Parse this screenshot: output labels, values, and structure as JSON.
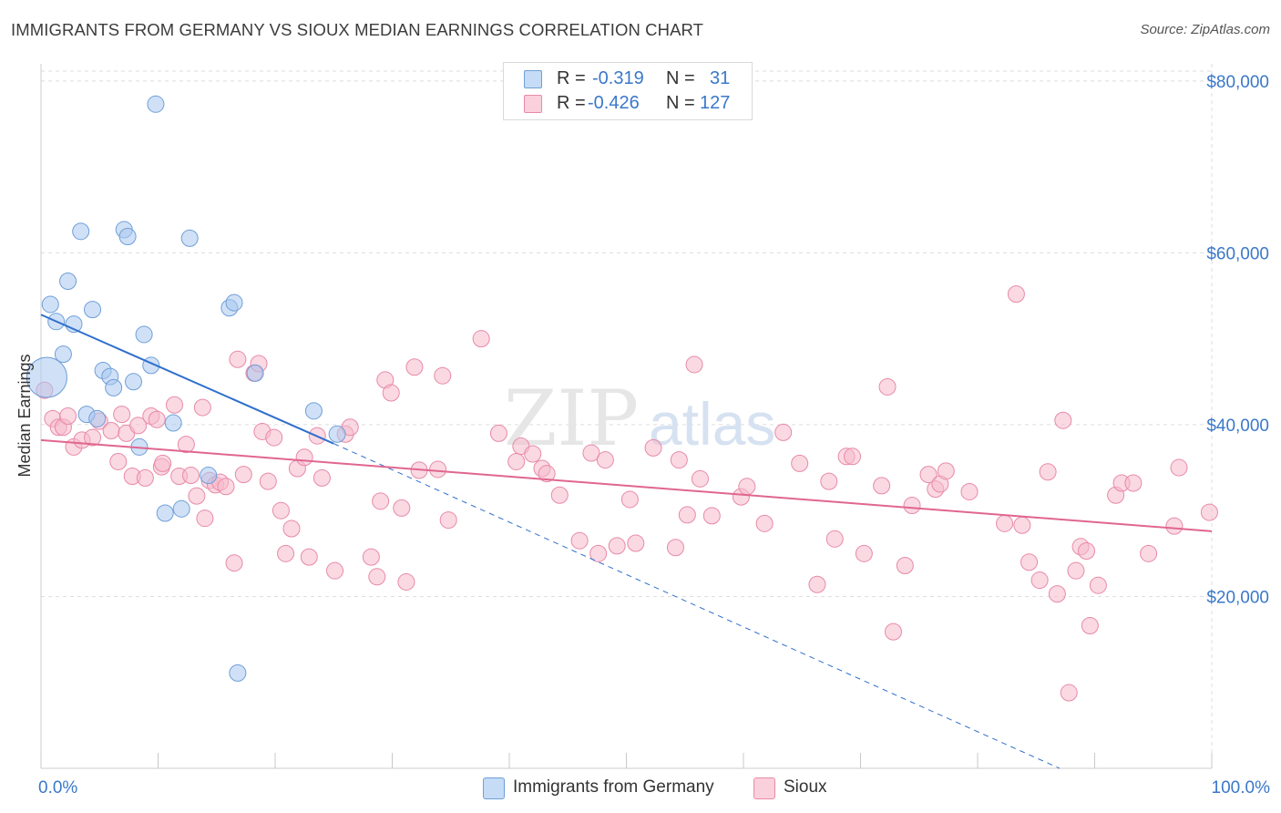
{
  "title": "IMMIGRANTS FROM GERMANY VS SIOUX MEDIAN EARNINGS CORRELATION CHART",
  "source": "Source: ZipAtlas.com",
  "watermark": {
    "zip": "ZIP",
    "atlas": "atlas"
  },
  "colors": {
    "blue_fill": "#a9c8f0",
    "blue_stroke": "#6f9fd8",
    "blue_line": "#2f6fcc",
    "pink_fill": "#f5b9cc",
    "pink_stroke": "#e88aa8",
    "pink_line": "#e06690",
    "axis_label": "#3a78c9",
    "grid": "#dedede"
  },
  "legend": {
    "r_label": "R =",
    "n_label": "N =",
    "rows": [
      {
        "series": "blue",
        "r": "-0.319",
        "n": "31"
      },
      {
        "series": "pink",
        "r": "-0.426",
        "n": "127"
      }
    ]
  },
  "bottom_legend": [
    {
      "series": "blue",
      "label": "Immigrants from Germany"
    },
    {
      "series": "pink",
      "label": "Sioux"
    }
  ],
  "chart_data": {
    "type": "scatter",
    "title": "IMMIGRANTS FROM GERMANY VS SIOUX MEDIAN EARNINGS CORRELATION CHART",
    "xlabel": "",
    "ylabel": "Median Earnings",
    "xlim": [
      0,
      100
    ],
    "ylim": [
      0,
      82000
    ],
    "x_tick_labels": [
      "0.0%",
      "100.0%"
    ],
    "y_ticks": [
      20000,
      40000,
      60000,
      80000
    ],
    "y_tick_labels": [
      "$20,000",
      "$40,000",
      "$60,000",
      "$80,000"
    ],
    "grid": true,
    "legend_position": "top-center",
    "series": [
      {
        "name": "Immigrants from Germany",
        "color": "#a9c8f0",
        "trend": {
          "x": [
            0,
            25
          ],
          "y": [
            52800,
            37800
          ],
          "dashed_extension_to": [
            87,
            0
          ]
        },
        "points": [
          [
            0.5,
            45500
          ],
          [
            0.8,
            54000
          ],
          [
            1.3,
            52000
          ],
          [
            1.9,
            48200
          ],
          [
            2.3,
            56700
          ],
          [
            2.8,
            51700
          ],
          [
            3.4,
            62500
          ],
          [
            3.9,
            41200
          ],
          [
            4.4,
            53400
          ],
          [
            4.8,
            40700
          ],
          [
            5.3,
            46300
          ],
          [
            5.9,
            45600
          ],
          [
            6.2,
            44300
          ],
          [
            7.1,
            62700
          ],
          [
            7.4,
            61900
          ],
          [
            7.9,
            45000
          ],
          [
            8.4,
            37400
          ],
          [
            8.8,
            50500
          ],
          [
            9.4,
            46900
          ],
          [
            9.8,
            77300
          ],
          [
            10.6,
            29700
          ],
          [
            11.3,
            40200
          ],
          [
            12.0,
            30200
          ],
          [
            12.7,
            61700
          ],
          [
            14.3,
            34100
          ],
          [
            16.1,
            53600
          ],
          [
            16.5,
            54200
          ],
          [
            16.8,
            11100
          ],
          [
            18.3,
            46000
          ],
          [
            23.3,
            41600
          ],
          [
            25.3,
            38900
          ]
        ]
      },
      {
        "name": "Sioux",
        "color": "#f5b9cc",
        "trend": {
          "x": [
            0,
            100
          ],
          "y": [
            38200,
            27600
          ]
        },
        "points": [
          [
            0.3,
            44000
          ],
          [
            1.0,
            40700
          ],
          [
            1.5,
            39700
          ],
          [
            1.9,
            39700
          ],
          [
            2.3,
            41000
          ],
          [
            2.8,
            37400
          ],
          [
            3.5,
            38200
          ],
          [
            4.4,
            38500
          ],
          [
            5.0,
            40400
          ],
          [
            6.0,
            39300
          ],
          [
            6.6,
            35700
          ],
          [
            6.9,
            41200
          ],
          [
            7.3,
            39000
          ],
          [
            7.8,
            34000
          ],
          [
            8.3,
            39900
          ],
          [
            8.9,
            33800
          ],
          [
            9.4,
            41000
          ],
          [
            9.9,
            40600
          ],
          [
            10.3,
            35100
          ],
          [
            10.4,
            35500
          ],
          [
            11.4,
            42300
          ],
          [
            11.8,
            34000
          ],
          [
            12.4,
            37700
          ],
          [
            12.8,
            34100
          ],
          [
            13.3,
            31700
          ],
          [
            13.8,
            42000
          ],
          [
            14.0,
            29100
          ],
          [
            14.4,
            33500
          ],
          [
            14.9,
            33000
          ],
          [
            15.3,
            33300
          ],
          [
            15.8,
            32800
          ],
          [
            16.5,
            23900
          ],
          [
            16.8,
            47600
          ],
          [
            17.3,
            34200
          ],
          [
            18.2,
            46000
          ],
          [
            18.6,
            47100
          ],
          [
            18.9,
            39200
          ],
          [
            19.4,
            33400
          ],
          [
            19.9,
            38500
          ],
          [
            20.5,
            30000
          ],
          [
            20.9,
            25000
          ],
          [
            21.4,
            27900
          ],
          [
            21.9,
            34900
          ],
          [
            22.5,
            36200
          ],
          [
            22.9,
            24600
          ],
          [
            23.6,
            38700
          ],
          [
            24.0,
            33800
          ],
          [
            25.1,
            23000
          ],
          [
            26.0,
            38900
          ],
          [
            26.4,
            39700
          ],
          [
            28.2,
            24600
          ],
          [
            28.7,
            22300
          ],
          [
            29.0,
            31100
          ],
          [
            29.4,
            45200
          ],
          [
            29.9,
            43700
          ],
          [
            30.8,
            30300
          ],
          [
            31.2,
            21700
          ],
          [
            31.9,
            46700
          ],
          [
            32.3,
            34700
          ],
          [
            33.9,
            34800
          ],
          [
            34.3,
            45700
          ],
          [
            34.8,
            28900
          ],
          [
            37.6,
            50000
          ],
          [
            39.1,
            39000
          ],
          [
            40.6,
            35700
          ],
          [
            41.0,
            37500
          ],
          [
            42.0,
            36600
          ],
          [
            42.8,
            34900
          ],
          [
            43.2,
            34300
          ],
          [
            44.3,
            31800
          ],
          [
            46.0,
            26500
          ],
          [
            47.0,
            36700
          ],
          [
            47.6,
            25000
          ],
          [
            48.2,
            35900
          ],
          [
            49.2,
            25900
          ],
          [
            50.3,
            31300
          ],
          [
            50.8,
            26200
          ],
          [
            52.3,
            37300
          ],
          [
            54.2,
            25700
          ],
          [
            54.5,
            35900
          ],
          [
            55.2,
            29500
          ],
          [
            55.8,
            47000
          ],
          [
            56.3,
            33700
          ],
          [
            57.3,
            29400
          ],
          [
            59.8,
            31600
          ],
          [
            60.3,
            32800
          ],
          [
            61.8,
            28500
          ],
          [
            63.4,
            39100
          ],
          [
            64.8,
            35500
          ],
          [
            66.3,
            21400
          ],
          [
            67.3,
            33400
          ],
          [
            67.8,
            26700
          ],
          [
            68.8,
            36300
          ],
          [
            69.3,
            36300
          ],
          [
            70.3,
            25000
          ],
          [
            71.8,
            32900
          ],
          [
            72.3,
            44400
          ],
          [
            72.8,
            15900
          ],
          [
            73.8,
            23600
          ],
          [
            74.4,
            30600
          ],
          [
            75.8,
            34200
          ],
          [
            76.4,
            32500
          ],
          [
            76.8,
            33100
          ],
          [
            77.3,
            34600
          ],
          [
            79.3,
            32200
          ],
          [
            82.3,
            28500
          ],
          [
            83.3,
            55200
          ],
          [
            83.8,
            28300
          ],
          [
            84.4,
            24000
          ],
          [
            85.3,
            21900
          ],
          [
            86.0,
            34500
          ],
          [
            86.8,
            20300
          ],
          [
            87.3,
            40500
          ],
          [
            87.8,
            8800
          ],
          [
            88.4,
            23000
          ],
          [
            88.8,
            25800
          ],
          [
            89.3,
            25300
          ],
          [
            89.6,
            16600
          ],
          [
            90.3,
            21300
          ],
          [
            91.8,
            31800
          ],
          [
            92.3,
            33200
          ],
          [
            93.3,
            33200
          ],
          [
            94.6,
            25000
          ],
          [
            96.8,
            28200
          ],
          [
            97.2,
            35000
          ],
          [
            99.8,
            29800
          ]
        ]
      }
    ]
  }
}
